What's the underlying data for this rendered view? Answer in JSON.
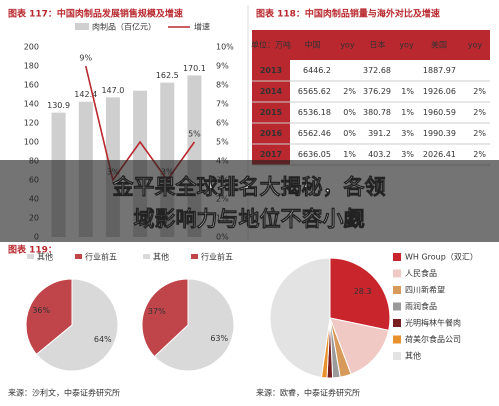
{
  "growth_chart": {
    "type": "bar",
    "title": "图表 117：中国肉制品发展销售规模及增速",
    "series": [
      {
        "name": "肉制品（百亿元）",
        "color": "#cfcfcf",
        "values": [
          130.9,
          142.4,
          147,
          154,
          162.5,
          170.1
        ],
        "value_labels": [
          "130.9",
          "142.4",
          "147.0",
          null,
          "162.5",
          "170.1"
        ]
      },
      {
        "name": "增速",
        "color": "#b8282e",
        "axis": "y2",
        "values": [
          null,
          9,
          3,
          5,
          3,
          5
        ],
        "value_labels": [
          null,
          "9%",
          "3%",
          null,
          "3%",
          "5%"
        ]
      }
    ],
    "ylim": [
      0,
      200
    ],
    "yticks": [
      0,
      20,
      40,
      60,
      80,
      100,
      120,
      140,
      160,
      180,
      200
    ],
    "y2lim": [
      0,
      10
    ],
    "y2ticks": [
      {
        "value": 0,
        "label": "0%"
      },
      {
        "value": 1,
        "label": "1%"
      },
      {
        "value": 2,
        "label": "2%"
      },
      {
        "value": 3,
        "label": "3%"
      },
      {
        "value": 4,
        "label": "4%"
      },
      {
        "value": 5,
        "label": "5%"
      },
      {
        "value": 6,
        "label": "6%"
      },
      {
        "value": 7,
        "label": "7%"
      },
      {
        "value": 8,
        "label": "8%"
      },
      {
        "value": 9,
        "label": "9%"
      },
      {
        "value": 10,
        "label": "10%"
      }
    ]
  },
  "table": {
    "title": "图表 118：中国肉制品销量与海外对比及增速",
    "header": [
      "单位：万吨",
      "中国",
      "yoy",
      "日本",
      "yoy",
      "美国",
      "yoy"
    ],
    "rows": [
      [
        "2013",
        "6446.2",
        null,
        "372.68",
        null,
        "1887.97",
        null
      ],
      [
        "2014",
        "6565.62",
        "2%",
        "376.29",
        "1%",
        "1926.06",
        "2%"
      ],
      [
        "2015",
        "6536.18",
        "0%",
        "380.78",
        "1%",
        "1960.59",
        "2%"
      ],
      [
        "2016",
        "6562.46",
        "0%",
        "391.2",
        "3%",
        "1990.39",
        "2%"
      ],
      [
        "2017",
        "6636.05",
        "1%",
        "403.2",
        "3%",
        "2026.41",
        "2%"
      ]
    ]
  },
  "banner": {
    "lines": [
      "金平果全球排名大揭秘，各领",
      "域影响力与地位不容小觑"
    ]
  },
  "pies": {
    "type": "pie",
    "title": "图表 119：",
    "charts": [
      {
        "categories": [
          "其他",
          "行业前五"
        ],
        "values": [
          64,
          36
        ],
        "value_labels": [
          "64%",
          "36%"
        ],
        "colors": [
          "#d9d9d9",
          "#c0454a"
        ]
      },
      {
        "categories": [
          "其他",
          "行业前五"
        ],
        "values": [
          63,
          37
        ],
        "value_labels": [
          "63%",
          "37%"
        ],
        "colors": [
          "#d9d9d9",
          "#c0454a"
        ]
      }
    ],
    "source": "来源：沙利文，中泰证券研究所"
  },
  "share": {
    "type": "pie",
    "categories": [
      "WH Group（双汇）",
      "人民食品",
      "四川新希望",
      "雨润食品",
      "光明梅林午餐肉",
      "荷美尔食品公司",
      "其他"
    ],
    "values": [
      28.3,
      16,
      3,
      2,
      1.5,
      1.5,
      47.7
    ],
    "value_labels": [
      "28.3",
      null,
      null,
      null,
      null,
      null,
      null
    ],
    "colors": [
      "#c8262c",
      "#f0c9c4",
      "#d79a5a",
      "#9a9a9a",
      "#7a1f1f",
      "#e8922e",
      "#e3e3e3"
    ],
    "source": "来源：欧睿，中泰证券研究所"
  }
}
